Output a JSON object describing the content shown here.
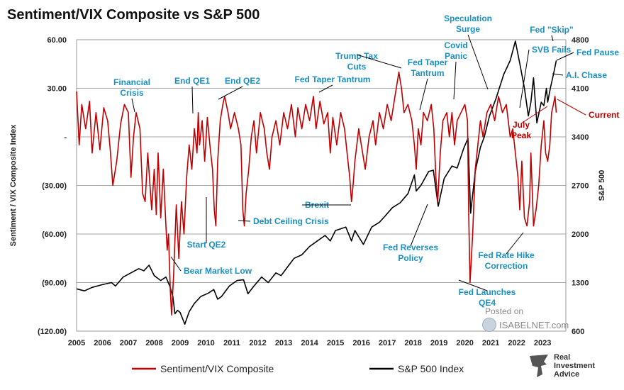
{
  "header": {
    "title": "Sentiment/VIX Composite vs S&P 500"
  },
  "watermark": {
    "line1": "Posted on",
    "line2": "ISABELNET.com"
  },
  "brand": {
    "line1": "Real",
    "line2": "Investment",
    "line3": "Advice"
  },
  "chart_data": {
    "type": "line",
    "title": "Sentiment/VIX Composite vs S&P 500",
    "x": {
      "min": 2005,
      "max": 2023.9,
      "tick_labels": [
        "2005",
        "2006",
        "2007",
        "2008",
        "2009",
        "2010",
        "2011",
        "2012",
        "2013",
        "2014",
        "2015",
        "2016",
        "2017",
        "2018",
        "2019",
        "2020",
        "2021",
        "2022",
        "2023"
      ]
    },
    "y_left": {
      "label": "Sentiment / VIX Composite Index",
      "min": -120,
      "max": 60,
      "tick_values": [
        60,
        30,
        0,
        -30,
        -60,
        -90,
        -120
      ],
      "tick_labels": [
        "60.00",
        "30.00",
        "-",
        "(30.00)",
        "(60.00)",
        "(90.00)",
        "(120.00)"
      ]
    },
    "y_right": {
      "label": "S&P 500",
      "min": 600,
      "max": 4800,
      "tick_values": [
        4800,
        4100,
        3400,
        2700,
        2000,
        1300,
        600
      ],
      "tick_labels": [
        "4800",
        "4100",
        "3400",
        "2700",
        "2000",
        "1300",
        "600"
      ]
    },
    "grid": true,
    "legend_position": "bottom",
    "series": [
      {
        "name": "Sentiment/VIX Composite",
        "color": "#c00000",
        "axis": "left",
        "points": [
          [
            2005.0,
            28
          ],
          [
            2005.1,
            -5
          ],
          [
            2005.2,
            20
          ],
          [
            2005.35,
            5
          ],
          [
            2005.5,
            22
          ],
          [
            2005.6,
            -10
          ],
          [
            2005.75,
            15
          ],
          [
            2005.9,
            -8
          ],
          [
            2006.05,
            18
          ],
          [
            2006.2,
            10
          ],
          [
            2006.3,
            -8
          ],
          [
            2006.4,
            -30
          ],
          [
            2006.55,
            -15
          ],
          [
            2006.7,
            8
          ],
          [
            2006.85,
            20
          ],
          [
            2007.0,
            15
          ],
          [
            2007.1,
            -25
          ],
          [
            2007.2,
            0
          ],
          [
            2007.3,
            15
          ],
          [
            2007.45,
            5
          ],
          [
            2007.55,
            -35
          ],
          [
            2007.65,
            -40
          ],
          [
            2007.75,
            -10
          ],
          [
            2007.9,
            -45
          ],
          [
            2008.0,
            -20
          ],
          [
            2008.08,
            -48
          ],
          [
            2008.15,
            -10
          ],
          [
            2008.25,
            -50
          ],
          [
            2008.35,
            -20
          ],
          [
            2008.45,
            -55
          ],
          [
            2008.5,
            -70
          ],
          [
            2008.55,
            -60
          ],
          [
            2008.62,
            -95
          ],
          [
            2008.67,
            -110
          ],
          [
            2008.7,
            -100
          ],
          [
            2008.75,
            -85
          ],
          [
            2008.85,
            -42
          ],
          [
            2008.95,
            -75
          ],
          [
            2009.05,
            -40
          ],
          [
            2009.15,
            -60
          ],
          [
            2009.25,
            -25
          ],
          [
            2009.35,
            -5
          ],
          [
            2009.45,
            -20
          ],
          [
            2009.55,
            5
          ],
          [
            2009.65,
            -10
          ],
          [
            2009.7,
            15
          ],
          [
            2009.75,
            -5
          ],
          [
            2009.85,
            10
          ],
          [
            2009.95,
            -15
          ],
          [
            2010.05,
            12
          ],
          [
            2010.15,
            -5
          ],
          [
            2010.25,
            -20
          ],
          [
            2010.32,
            -45
          ],
          [
            2010.38,
            -55
          ],
          [
            2010.45,
            -15
          ],
          [
            2010.55,
            10
          ],
          [
            2010.65,
            20
          ],
          [
            2010.72,
            25
          ],
          [
            2010.85,
            15
          ],
          [
            2010.95,
            5
          ],
          [
            2011.1,
            15
          ],
          [
            2011.25,
            5
          ],
          [
            2011.35,
            -5
          ],
          [
            2011.42,
            -45
          ],
          [
            2011.48,
            -55
          ],
          [
            2011.55,
            -35
          ],
          [
            2011.65,
            -20
          ],
          [
            2011.75,
            0
          ],
          [
            2011.85,
            10
          ],
          [
            2011.95,
            -10
          ],
          [
            2012.1,
            15
          ],
          [
            2012.25,
            5
          ],
          [
            2012.35,
            -10
          ],
          [
            2012.45,
            -20
          ],
          [
            2012.55,
            0
          ],
          [
            2012.7,
            10
          ],
          [
            2012.85,
            -5
          ],
          [
            2013.0,
            15
          ],
          [
            2013.15,
            5
          ],
          [
            2013.3,
            20
          ],
          [
            2013.45,
            0
          ],
          [
            2013.55,
            18
          ],
          [
            2013.7,
            5
          ],
          [
            2013.85,
            20
          ],
          [
            2014.0,
            10
          ],
          [
            2014.15,
            25
          ],
          [
            2014.25,
            5
          ],
          [
            2014.4,
            22
          ],
          [
            2014.55,
            8
          ],
          [
            2014.7,
            15
          ],
          [
            2014.8,
            -10
          ],
          [
            2014.9,
            12
          ],
          [
            2015.05,
            -5
          ],
          [
            2015.2,
            15
          ],
          [
            2015.35,
            5
          ],
          [
            2015.45,
            -10
          ],
          [
            2015.55,
            -25
          ],
          [
            2015.62,
            -40
          ],
          [
            2015.68,
            -30
          ],
          [
            2015.75,
            -15
          ],
          [
            2015.9,
            5
          ],
          [
            2016.05,
            -10
          ],
          [
            2016.15,
            -20
          ],
          [
            2016.3,
            0
          ],
          [
            2016.45,
            10
          ],
          [
            2016.55,
            -5
          ],
          [
            2016.7,
            15
          ],
          [
            2016.85,
            5
          ],
          [
            2017.0,
            20
          ],
          [
            2017.15,
            10
          ],
          [
            2017.3,
            25
          ],
          [
            2017.45,
            40
          ],
          [
            2017.55,
            30
          ],
          [
            2017.65,
            15
          ],
          [
            2017.8,
            20
          ],
          [
            2017.95,
            10
          ],
          [
            2018.05,
            -5
          ],
          [
            2018.12,
            -20
          ],
          [
            2018.2,
            5
          ],
          [
            2018.3,
            -5
          ],
          [
            2018.4,
            15
          ],
          [
            2018.55,
            10
          ],
          [
            2018.7,
            20
          ],
          [
            2018.8,
            5
          ],
          [
            2018.88,
            -25
          ],
          [
            2018.95,
            -40
          ],
          [
            2019.05,
            -10
          ],
          [
            2019.15,
            10
          ],
          [
            2019.3,
            15
          ],
          [
            2019.4,
            0
          ],
          [
            2019.5,
            15
          ],
          [
            2019.6,
            -5
          ],
          [
            2019.7,
            10
          ],
          [
            2019.85,
            15
          ],
          [
            2020.0,
            20
          ],
          [
            2020.1,
            10
          ],
          [
            2020.15,
            -50
          ],
          [
            2020.2,
            -90
          ],
          [
            2020.3,
            -60
          ],
          [
            2020.4,
            -20
          ],
          [
            2020.5,
            -5
          ],
          [
            2020.6,
            10
          ],
          [
            2020.7,
            0
          ],
          [
            2020.85,
            15
          ],
          [
            2021.0,
            20
          ],
          [
            2021.15,
            10
          ],
          [
            2021.3,
            25
          ],
          [
            2021.45,
            15
          ],
          [
            2021.6,
            20
          ],
          [
            2021.75,
            0
          ],
          [
            2021.85,
            5
          ],
          [
            2021.95,
            -10
          ],
          [
            2022.05,
            -25
          ],
          [
            2022.12,
            -45
          ],
          [
            2022.2,
            -15
          ],
          [
            2022.3,
            -50
          ],
          [
            2022.4,
            -55
          ],
          [
            2022.5,
            -40
          ],
          [
            2022.55,
            -10
          ],
          [
            2022.65,
            -55
          ],
          [
            2022.75,
            -45
          ],
          [
            2022.85,
            -30
          ],
          [
            2022.95,
            -5
          ],
          [
            2023.05,
            10
          ],
          [
            2023.12,
            -10
          ],
          [
            2023.2,
            -15
          ],
          [
            2023.28,
            -5
          ],
          [
            2023.35,
            15
          ],
          [
            2023.42,
            20
          ],
          [
            2023.48,
            25
          ],
          [
            2023.53,
            15
          ]
        ]
      },
      {
        "name": "S&P 500 Index",
        "color": "#000000",
        "axis": "right",
        "points": [
          [
            2005.0,
            1210
          ],
          [
            2005.3,
            1180
          ],
          [
            2005.6,
            1230
          ],
          [
            2006.0,
            1270
          ],
          [
            2006.35,
            1300
          ],
          [
            2006.5,
            1250
          ],
          [
            2006.8,
            1380
          ],
          [
            2007.0,
            1420
          ],
          [
            2007.4,
            1500
          ],
          [
            2007.6,
            1470
          ],
          [
            2007.8,
            1550
          ],
          [
            2008.0,
            1400
          ],
          [
            2008.25,
            1330
          ],
          [
            2008.45,
            1380
          ],
          [
            2008.6,
            1250
          ],
          [
            2008.72,
            1100
          ],
          [
            2008.8,
            850
          ],
          [
            2008.9,
            900
          ],
          [
            2009.0,
            870
          ],
          [
            2009.18,
            700
          ],
          [
            2009.35,
            880
          ],
          [
            2009.55,
            1000
          ],
          [
            2009.8,
            1100
          ],
          [
            2010.1,
            1150
          ],
          [
            2010.3,
            1200
          ],
          [
            2010.45,
            1060
          ],
          [
            2010.6,
            1100
          ],
          [
            2010.9,
            1250
          ],
          [
            2011.2,
            1330
          ],
          [
            2011.45,
            1340
          ],
          [
            2011.62,
            1140
          ],
          [
            2011.85,
            1250
          ],
          [
            2012.15,
            1380
          ],
          [
            2012.4,
            1300
          ],
          [
            2012.7,
            1440
          ],
          [
            2012.9,
            1400
          ],
          [
            2013.1,
            1500
          ],
          [
            2013.4,
            1650
          ],
          [
            2013.7,
            1700
          ],
          [
            2014.0,
            1820
          ],
          [
            2014.3,
            1900
          ],
          [
            2014.6,
            1980
          ],
          [
            2014.8,
            1900
          ],
          [
            2015.0,
            2050
          ],
          [
            2015.4,
            2100
          ],
          [
            2015.62,
            1900
          ],
          [
            2015.75,
            2050
          ],
          [
            2016.08,
            1850
          ],
          [
            2016.4,
            2100
          ],
          [
            2016.7,
            2170
          ],
          [
            2016.9,
            2250
          ],
          [
            2017.2,
            2380
          ],
          [
            2017.5,
            2450
          ],
          [
            2017.8,
            2580
          ],
          [
            2018.05,
            2850
          ],
          [
            2018.12,
            2620
          ],
          [
            2018.3,
            2700
          ],
          [
            2018.6,
            2900
          ],
          [
            2018.78,
            2920
          ],
          [
            2018.97,
            2400
          ],
          [
            2019.2,
            2800
          ],
          [
            2019.5,
            2980
          ],
          [
            2019.7,
            2950
          ],
          [
            2019.95,
            3230
          ],
          [
            2020.12,
            3380
          ],
          [
            2020.22,
            2300
          ],
          [
            2020.4,
            2900
          ],
          [
            2020.6,
            3250
          ],
          [
            2020.75,
            3400
          ],
          [
            2020.95,
            3700
          ],
          [
            2021.2,
            3950
          ],
          [
            2021.5,
            4300
          ],
          [
            2021.75,
            4500
          ],
          [
            2021.95,
            4780
          ],
          [
            2022.15,
            4400
          ],
          [
            2022.3,
            4100
          ],
          [
            2022.45,
            3700
          ],
          [
            2022.55,
            3900
          ],
          [
            2022.65,
            4250
          ],
          [
            2022.78,
            3600
          ],
          [
            2022.95,
            3900
          ],
          [
            2023.05,
            3850
          ],
          [
            2023.15,
            4100
          ],
          [
            2023.2,
            3900
          ],
          [
            2023.3,
            4100
          ],
          [
            2023.42,
            4300
          ],
          [
            2023.53,
            4500
          ]
        ]
      }
    ],
    "annotations": [
      {
        "text": "Financial Crisis",
        "color": "#1a8fc4"
      },
      {
        "text": "End QE1",
        "color": "#1a8fc4"
      },
      {
        "text": "End QE2",
        "color": "#1a8fc4"
      },
      {
        "text": "Fed Taper Tantrum",
        "color": "#1a8fc4"
      },
      {
        "text": "Trump Tax Cuts",
        "color": "#1a8fc4"
      },
      {
        "text": "Fed Taper Tantrum",
        "color": "#1a8fc4"
      },
      {
        "text": "Covid Panic",
        "color": "#1a8fc4"
      },
      {
        "text": "Speculation Surge",
        "color": "#1a8fc4"
      },
      {
        "text": "Fed \"Skip\"",
        "color": "#1a8fc4"
      },
      {
        "text": "SVB Fails",
        "color": "#1a8fc4"
      },
      {
        "text": "Fed Pause",
        "color": "#1a8fc4"
      },
      {
        "text": "A.I. Chase",
        "color": "#1a8fc4"
      },
      {
        "text": "Current",
        "color": "#c00000"
      },
      {
        "text": "July Peak",
        "color": "#c00000"
      },
      {
        "text": "Brexit",
        "color": "#1a8fc4"
      },
      {
        "text": "Debt Ceiling Crisis",
        "color": "#1a8fc4"
      },
      {
        "text": "Start QE2",
        "color": "#1a8fc4"
      },
      {
        "text": "Bear Market Low",
        "color": "#1a8fc4"
      },
      {
        "text": "Fed Reverses Policy",
        "color": "#1a8fc4"
      },
      {
        "text": "Fed Launches QE4",
        "color": "#1a8fc4"
      },
      {
        "text": "Fed Rate Hike Correction",
        "color": "#1a8fc4"
      }
    ]
  }
}
